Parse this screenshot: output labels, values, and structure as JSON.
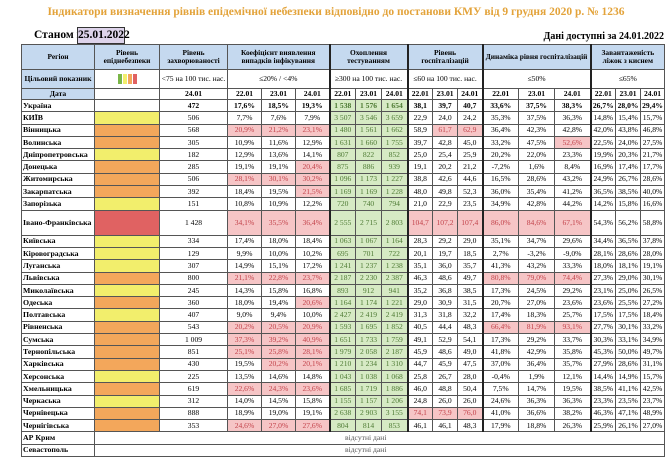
{
  "title": "Індикатори визначення рівнів епідемічної небезпеки відповідно до постанови КМУ від 9 грудня 2020 р. № 1236",
  "as_of_label": "Станом на",
  "as_of_date": "25.01.2022",
  "available": "Дані доступні за 24.01.2022",
  "headers": {
    "region": "Регіон",
    "level": "Рівень епіднебезпеки",
    "incidence": "Рівень захворюваності",
    "detection": "Коефіцієнт виявлення випадків інфікування",
    "testing": "Охоплення тестуванням",
    "hosp": "Рівень госпіталізацій",
    "hosp_dyn": "Динаміка рівня госпіталізацій",
    "beds": "Завантаженість ліжок з киснем"
  },
  "target": {
    "label": "Цільовий показник",
    "incidence": "<75 на 100 тис. нас.",
    "detection": "≤20% / <4%",
    "testing": "≥300 на 100 тис. нас.",
    "hosp": "≤60 на 100 тис. нас.",
    "hosp_dyn": "≤50%",
    "beds": "≤65%"
  },
  "date_label": "Дата",
  "incidence_date": "24.01",
  "dates": [
    "22.01",
    "23.01",
    "24.01"
  ],
  "level_colors": {
    "yellow": "#f2ee6c",
    "orange": "#f3a75b",
    "red": "#e06262",
    "green": "#7ab648"
  },
  "rows": [
    {
      "region": "Україна",
      "level": "",
      "inc": "472",
      "det": [
        "17,6%",
        "18,5%",
        "19,3%"
      ],
      "test": [
        "1 538",
        "1 576",
        "1 654"
      ],
      "hosp": [
        "38,1",
        "39,7",
        "40,7"
      ],
      "dyn": [
        "33,6%",
        "37,5%",
        "38,3%"
      ],
      "beds": [
        "26,7%",
        "28,0%",
        "29,4%"
      ]
    },
    {
      "region": "КИЇВ",
      "level": "yellow",
      "inc": "506",
      "det": [
        "7,7%",
        "7,6%",
        "7,9%"
      ],
      "test": [
        "3 507",
        "3 546",
        "3 659"
      ],
      "hosp": [
        "22,9",
        "24,0",
        "24,2"
      ],
      "dyn": [
        "35,3%",
        "37,5%",
        "36,3%"
      ],
      "beds": [
        "14,8%",
        "15,4%",
        "15,7%"
      ]
    },
    {
      "region": "Вінницька",
      "level": "orange",
      "inc": "568",
      "det": [
        "20,9%",
        "21,2%",
        "23,1%"
      ],
      "test": [
        "1 480",
        "1 561",
        "1 662"
      ],
      "hosp": [
        "58,9",
        "61,7",
        "62,9"
      ],
      "dyn": [
        "36,4%",
        "42,3%",
        "42,8%"
      ],
      "beds": [
        "42,0%",
        "43,8%",
        "46,8%"
      ]
    },
    {
      "region": "Волинська",
      "level": "orange",
      "inc": "305",
      "det": [
        "10,9%",
        "11,6%",
        "12,9%"
      ],
      "test": [
        "1 631",
        "1 660",
        "1 755"
      ],
      "hosp": [
        "39,7",
        "42,8",
        "45,0"
      ],
      "dyn": [
        "33,2%",
        "47,5%",
        "52,6%"
      ],
      "beds": [
        "22,5%",
        "24,0%",
        "27,5%"
      ]
    },
    {
      "region": "Дніпропетровська",
      "level": "yellow",
      "inc": "182",
      "det": [
        "12,9%",
        "13,6%",
        "14,1%"
      ],
      "test": [
        "807",
        "822",
        "852"
      ],
      "hosp": [
        "25,0",
        "25,4",
        "25,9"
      ],
      "dyn": [
        "20,2%",
        "22,0%",
        "23,3%"
      ],
      "beds": [
        "19,9%",
        "20,3%",
        "21,7%"
      ]
    },
    {
      "region": "Донецька",
      "level": "orange",
      "inc": "285",
      "det": [
        "19,1%",
        "19,1%",
        "20,4%"
      ],
      "test": [
        "875",
        "886",
        "939"
      ],
      "hosp": [
        "19,1",
        "20,2",
        "21,2"
      ],
      "dyn": [
        "-7,2%",
        "1,6%",
        "8,4%"
      ],
      "beds": [
        "16,9%",
        "17,4%",
        "17,7%"
      ]
    },
    {
      "region": "Житомирська",
      "level": "orange",
      "inc": "506",
      "det": [
        "28,1%",
        "30,1%",
        "30,2%"
      ],
      "test": [
        "1 096",
        "1 173",
        "1 227"
      ],
      "hosp": [
        "38,8",
        "42,6",
        "44,6"
      ],
      "dyn": [
        "16,5%",
        "28,6%",
        "43,2%"
      ],
      "beds": [
        "24,9%",
        "26,7%",
        "28,6%"
      ]
    },
    {
      "region": "Закарпатська",
      "level": "orange",
      "inc": "392",
      "det": [
        "18,4%",
        "19,5%",
        "21,5%"
      ],
      "test": [
        "1 169",
        "1 169",
        "1 228"
      ],
      "hosp": [
        "48,0",
        "49,8",
        "52,3"
      ],
      "dyn": [
        "36,0%",
        "35,4%",
        "41,2%"
      ],
      "beds": [
        "36,5%",
        "38,5%",
        "40,0%"
      ]
    },
    {
      "region": "Запорізька",
      "level": "yellow",
      "inc": "151",
      "det": [
        "10,8%",
        "10,9%",
        "12,2%"
      ],
      "test": [
        "720",
        "740",
        "794"
      ],
      "hosp": [
        "21,0",
        "22,9",
        "23,5"
      ],
      "dyn": [
        "34,9%",
        "42,8%",
        "44,2%"
      ],
      "beds": [
        "14,2%",
        "15,8%",
        "16,6%"
      ]
    },
    {
      "region": "Івано-Франківська",
      "level": "red",
      "inc": "1 428",
      "det": [
        "34,1%",
        "35,5%",
        "36,4%"
      ],
      "test": [
        "2 555",
        "2 715",
        "2 803"
      ],
      "hosp": [
        "104,7",
        "107,2",
        "107,4"
      ],
      "dyn": [
        "86,0%",
        "84,6%",
        "67,1%"
      ],
      "beds": [
        "54,3%",
        "56,2%",
        "58,8%"
      ]
    },
    {
      "region": "Київська",
      "level": "yellow",
      "inc": "334",
      "det": [
        "17,4%",
        "18,0%",
        "18,4%"
      ],
      "test": [
        "1 063",
        "1 067",
        "1 164"
      ],
      "hosp": [
        "28,3",
        "29,2",
        "29,0"
      ],
      "dyn": [
        "35,1%",
        "34,7%",
        "29,6%"
      ],
      "beds": [
        "34,4%",
        "36,5%",
        "37,8%"
      ]
    },
    {
      "region": "Кіровоградська",
      "level": "yellow",
      "inc": "129",
      "det": [
        "9,9%",
        "10,0%",
        "10,2%"
      ],
      "test": [
        "695",
        "701",
        "722"
      ],
      "hosp": [
        "20,1",
        "19,7",
        "18,5"
      ],
      "dyn": [
        "2,7%",
        "-3,2%",
        "-9,0%"
      ],
      "beds": [
        "28,1%",
        "28,6%",
        "28,0%"
      ]
    },
    {
      "region": "Луганська",
      "level": "yellow",
      "inc": "307",
      "det": [
        "14,9%",
        "15,1%",
        "17,2%"
      ],
      "test": [
        "1 241",
        "1 237",
        "1 238"
      ],
      "hosp": [
        "35,1",
        "36,0",
        "35,7"
      ],
      "dyn": [
        "41,3%",
        "43,2%",
        "33,3%"
      ],
      "beds": [
        "18,0%",
        "18,1%",
        "19,1%"
      ]
    },
    {
      "region": "Львівська",
      "level": "orange",
      "inc": "800",
      "det": [
        "21,1%",
        "22,8%",
        "23,7%"
      ],
      "test": [
        "2 187",
        "2 230",
        "2 387"
      ],
      "hosp": [
        "46,3",
        "48,6",
        "49,7"
      ],
      "dyn": [
        "80,8%",
        "79,0%",
        "74,4%"
      ],
      "beds": [
        "27,3%",
        "29,0%",
        "30,1%"
      ]
    },
    {
      "region": "Миколаївська",
      "level": "yellow",
      "inc": "245",
      "det": [
        "14,3%",
        "15,8%",
        "16,8%"
      ],
      "test": [
        "893",
        "912",
        "941"
      ],
      "hosp": [
        "35,2",
        "36,8",
        "38,5"
      ],
      "dyn": [
        "17,3%",
        "24,5%",
        "29,2%"
      ],
      "beds": [
        "23,1%",
        "25,0%",
        "26,5%"
      ]
    },
    {
      "region": "Одеська",
      "level": "orange",
      "inc": "360",
      "det": [
        "18,0%",
        "19,4%",
        "20,6%"
      ],
      "test": [
        "1 164",
        "1 174",
        "1 221"
      ],
      "hosp": [
        "29,0",
        "30,9",
        "31,5"
      ],
      "dyn": [
        "20,7%",
        "27,0%",
        "23,6%"
      ],
      "beds": [
        "23,6%",
        "25,5%",
        "27,2%"
      ]
    },
    {
      "region": "Полтавська",
      "level": "yellow",
      "inc": "407",
      "det": [
        "9,0%",
        "9,4%",
        "10,0%"
      ],
      "test": [
        "2 427",
        "2 419",
        "2 419"
      ],
      "hosp": [
        "31,3",
        "31,8",
        "32,2"
      ],
      "dyn": [
        "17,4%",
        "18,3%",
        "25,7%"
      ],
      "beds": [
        "17,5%",
        "17,5%",
        "18,4%"
      ]
    },
    {
      "region": "Рівненська",
      "level": "orange",
      "inc": "543",
      "det": [
        "20,2%",
        "20,5%",
        "20,9%"
      ],
      "test": [
        "1 593",
        "1 695",
        "1 852"
      ],
      "hosp": [
        "40,5",
        "44,4",
        "48,3"
      ],
      "dyn": [
        "66,4%",
        "81,9%",
        "93,1%"
      ],
      "beds": [
        "27,7%",
        "30,1%",
        "33,2%"
      ]
    },
    {
      "region": "Сумська",
      "level": "orange",
      "inc": "1 009",
      "det": [
        "37,3%",
        "39,2%",
        "40,9%"
      ],
      "test": [
        "1 651",
        "1 733",
        "1 759"
      ],
      "hosp": [
        "49,1",
        "52,9",
        "54,1"
      ],
      "dyn": [
        "17,3%",
        "29,2%",
        "33,7%"
      ],
      "beds": [
        "30,3%",
        "33,1%",
        "34,9%"
      ]
    },
    {
      "region": "Тернопільська",
      "level": "orange",
      "inc": "851",
      "det": [
        "25,1%",
        "25,8%",
        "28,1%"
      ],
      "test": [
        "1 979",
        "2 058",
        "2 187"
      ],
      "hosp": [
        "45,9",
        "48,6",
        "49,0"
      ],
      "dyn": [
        "41,8%",
        "42,9%",
        "35,8%"
      ],
      "beds": [
        "45,3%",
        "50,0%",
        "49,7%"
      ]
    },
    {
      "region": "Харківська",
      "level": "orange",
      "inc": "430",
      "det": [
        "19,5%",
        "20,2%",
        "20,1%"
      ],
      "test": [
        "1 210",
        "1 234",
        "1 310"
      ],
      "hosp": [
        "44,7",
        "45,9",
        "47,5"
      ],
      "dyn": [
        "37,0%",
        "36,4%",
        "35,7%"
      ],
      "beds": [
        "27,9%",
        "28,6%",
        "31,1%"
      ]
    },
    {
      "region": "Херсонська",
      "level": "yellow",
      "inc": "225",
      "det": [
        "13,5%",
        "14,6%",
        "14,8%"
      ],
      "test": [
        "1 043",
        "1 038",
        "1 068"
      ],
      "hosp": [
        "25,8",
        "26,7",
        "28,0"
      ],
      "dyn": [
        "-0,4%",
        "1,9%",
        "12,1%"
      ],
      "beds": [
        "14,4%",
        "14,9%",
        "15,7%"
      ]
    },
    {
      "region": "Хмельницька",
      "level": "orange",
      "inc": "619",
      "det": [
        "22,6%",
        "24,3%",
        "23,6%"
      ],
      "test": [
        "1 685",
        "1 719",
        "1 886"
      ],
      "hosp": [
        "46,0",
        "48,8",
        "50,4"
      ],
      "dyn": [
        "7,5%",
        "14,7%",
        "19,5%"
      ],
      "beds": [
        "38,5%",
        "41,1%",
        "42,5%"
      ]
    },
    {
      "region": "Черкаська",
      "level": "yellow",
      "inc": "312",
      "det": [
        "14,0%",
        "14,5%",
        "15,8%"
      ],
      "test": [
        "1 155",
        "1 157",
        "1 206"
      ],
      "hosp": [
        "24,8",
        "26,0",
        "26,0"
      ],
      "dyn": [
        "24,6%",
        "36,3%",
        "36,3%"
      ],
      "beds": [
        "23,3%",
        "23,5%",
        "23,7%"
      ]
    },
    {
      "region": "Чернівецька",
      "level": "orange",
      "inc": "888",
      "det": [
        "18,9%",
        "19,0%",
        "19,1%"
      ],
      "test": [
        "2 638",
        "2 903",
        "3 155"
      ],
      "hosp": [
        "74,1",
        "73,9",
        "76,0"
      ],
      "dyn": [
        "41,0%",
        "36,6%",
        "38,2%"
      ],
      "beds": [
        "46,3%",
        "47,1%",
        "48,9%"
      ]
    },
    {
      "region": "Чернігівська",
      "level": "orange",
      "inc": "353",
      "det": [
        "24,6%",
        "27,0%",
        "27,6%"
      ],
      "test": [
        "804",
        "814",
        "853"
      ],
      "hosp": [
        "46,1",
        "46,1",
        "48,3"
      ],
      "dyn": [
        "17,9%",
        "18,8%",
        "26,3%"
      ],
      "beds": [
        "25,9%",
        "26,1%",
        "27,0%"
      ]
    }
  ],
  "missing_rows": [
    {
      "region": "АР Крим",
      "note": "відсутні дані"
    },
    {
      "region": "Севастополь",
      "note": "відсутні дані"
    }
  ]
}
